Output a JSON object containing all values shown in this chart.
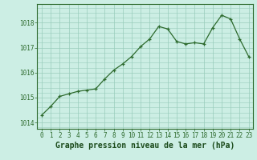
{
  "x": [
    0,
    1,
    2,
    3,
    4,
    5,
    6,
    7,
    8,
    9,
    10,
    11,
    12,
    13,
    14,
    15,
    16,
    17,
    18,
    19,
    20,
    21,
    22,
    23
  ],
  "y": [
    1014.3,
    1014.65,
    1015.05,
    1015.15,
    1015.25,
    1015.3,
    1015.35,
    1015.75,
    1016.1,
    1016.35,
    1016.65,
    1017.05,
    1017.35,
    1017.85,
    1017.75,
    1017.25,
    1017.15,
    1017.2,
    1017.15,
    1017.8,
    1018.3,
    1018.15,
    1017.35,
    1016.65
  ],
  "xlabel": "Graphe pression niveau de la mer (hPa)",
  "yticks": [
    1014,
    1015,
    1016,
    1017,
    1018
  ],
  "xticks": [
    0,
    1,
    2,
    3,
    4,
    5,
    6,
    7,
    8,
    9,
    10,
    11,
    12,
    13,
    14,
    15,
    16,
    17,
    18,
    19,
    20,
    21,
    22,
    23
  ],
  "ylim": [
    1013.75,
    1018.75
  ],
  "xlim": [
    -0.5,
    23.5
  ],
  "line_color": "#2d6a2d",
  "marker_color": "#2d6a2d",
  "bg_color": "#cceee4",
  "grid_color": "#99ccbb",
  "border_color": "#2d6a2d",
  "xlabel_color": "#1a4a1a",
  "xlabel_fontsize": 7.0,
  "tick_fontsize": 5.5,
  "tick_color": "#2d6a2d"
}
